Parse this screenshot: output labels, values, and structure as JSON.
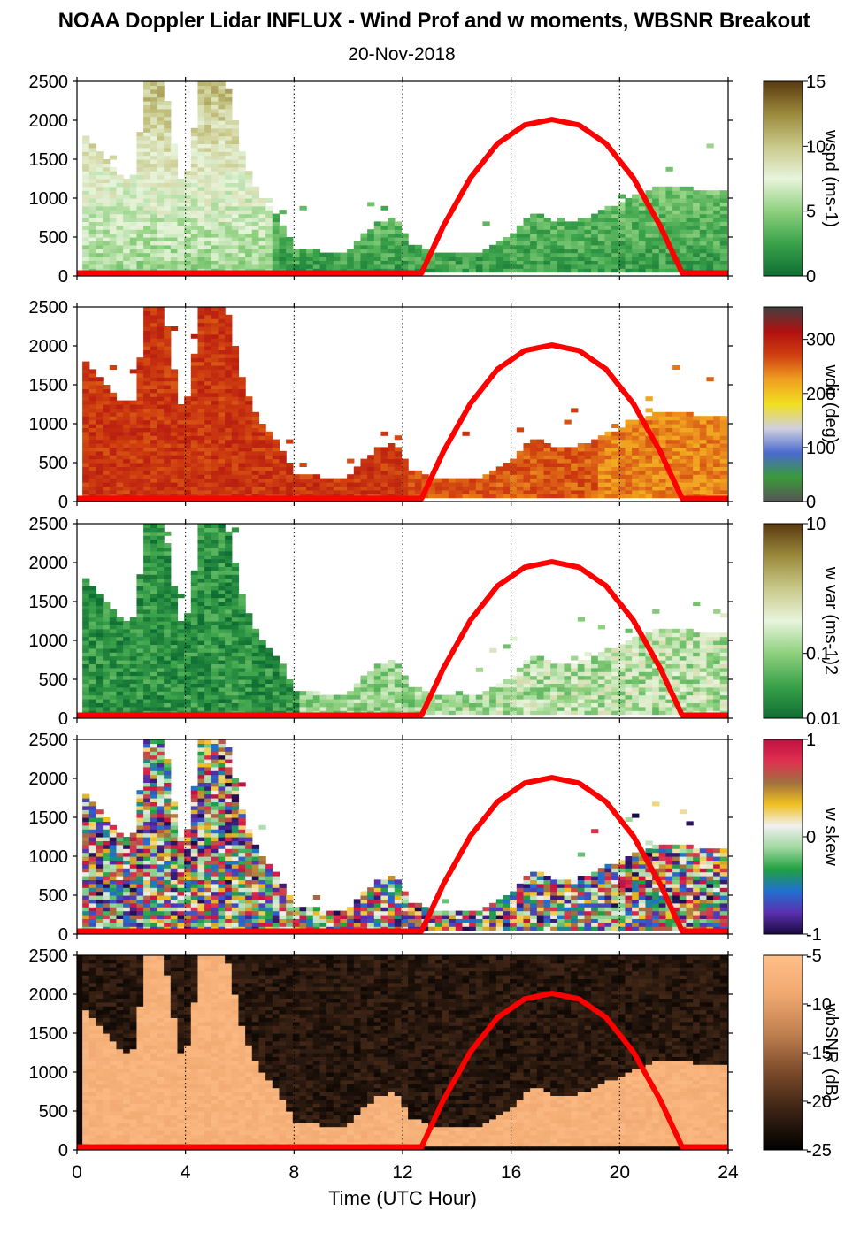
{
  "title": "NOAA Doppler Lidar INFLUX - Wind Prof and w moments, WBSNR Breakout",
  "subtitle": "20-Nov-2018",
  "xaxis": {
    "label": "Time (UTC Hour)",
    "range": [
      0,
      24
    ],
    "ticks": [
      "0",
      "4",
      "8",
      "12",
      "16",
      "20",
      "24"
    ],
    "grid_lines": [
      4,
      8,
      12,
      16,
      20,
      24
    ]
  },
  "yaxis": {
    "range": [
      0,
      2500
    ],
    "ticks": [
      "0",
      "500",
      "1000",
      "1500",
      "2000",
      "2500"
    ]
  },
  "overlay_color": "#ff0000",
  "chart_data": [
    {
      "type": "heatmap",
      "variable": "wspd",
      "colorbar": {
        "label": "wspd (ms-1)",
        "range": [
          0,
          15
        ],
        "ticks": [
          "0",
          "5",
          "10",
          "15"
        ],
        "colors": [
          "#0f6e33",
          "#3aa24a",
          "#8ed07e",
          "#e8f4dc",
          "#c9c98a",
          "#9b8a3c",
          "#5a3a10"
        ]
      },
      "overlay": {
        "name": "solar elevation curve",
        "x": [
          0,
          12.7,
          13.5,
          14.5,
          15.5,
          16.5,
          17.5,
          18.5,
          19.5,
          20.5,
          21.5,
          22.3,
          24
        ],
        "y": [
          40,
          40,
          640,
          1260,
          1700,
          1940,
          2010,
          1940,
          1700,
          1260,
          640,
          40,
          40
        ]
      }
    },
    {
      "type": "heatmap",
      "variable": "wdir",
      "colorbar": {
        "label": "wdir (deg)",
        "range": [
          0,
          360
        ],
        "ticks": [
          "0",
          "100",
          "200",
          "300"
        ],
        "colors": [
          "#555555",
          "#3a9a3a",
          "#4a6ad0",
          "#d0d0e0",
          "#f0e020",
          "#f0a020",
          "#d04010",
          "#b01010",
          "#404040"
        ]
      },
      "overlay": {
        "name": "solar elevation curve",
        "x": [
          0,
          12.7,
          13.5,
          14.5,
          15.5,
          16.5,
          17.5,
          18.5,
          19.5,
          20.5,
          21.5,
          22.3,
          24
        ],
        "y": [
          40,
          40,
          640,
          1260,
          1700,
          1940,
          2010,
          1940,
          1700,
          1260,
          640,
          40,
          40
        ]
      }
    },
    {
      "type": "heatmap",
      "variable": "w var",
      "colorbar": {
        "label": "w var (ms-1)2",
        "range": [
          0.01,
          10
        ],
        "scale": "log",
        "ticks": [
          "0.01",
          "0.1",
          "10"
        ],
        "colors": [
          "#0f6e33",
          "#3aa24a",
          "#8ed07e",
          "#e8f4dc",
          "#c9c98a",
          "#9b8a3c",
          "#5a3a10"
        ]
      },
      "overlay": {
        "name": "solar elevation curve",
        "x": [
          0,
          12.7,
          13.5,
          14.5,
          15.5,
          16.5,
          17.5,
          18.5,
          19.5,
          20.5,
          21.5,
          22.3,
          24
        ],
        "y": [
          40,
          40,
          640,
          1260,
          1700,
          1940,
          2010,
          1940,
          1700,
          1260,
          640,
          40,
          40
        ]
      }
    },
    {
      "type": "heatmap",
      "variable": "w skew",
      "colorbar": {
        "label": "w skew",
        "range": [
          -1,
          1
        ],
        "ticks": [
          "-1",
          "0",
          "1"
        ],
        "colors": [
          "#1a0a40",
          "#5a30b0",
          "#2070d0",
          "#20a040",
          "#a0d8a0",
          "#f0f0f0",
          "#f0c020",
          "#a07040",
          "#e03050",
          "#c01040"
        ]
      },
      "overlay": {
        "name": "solar elevation curve",
        "x": [
          0,
          12.7,
          13.5,
          14.5,
          15.5,
          16.5,
          17.5,
          18.5,
          19.5,
          20.5,
          21.5,
          22.3,
          24
        ],
        "y": [
          40,
          40,
          640,
          1260,
          1700,
          1940,
          2010,
          1940,
          1700,
          1260,
          640,
          40,
          40
        ]
      }
    },
    {
      "type": "heatmap",
      "variable": "wbSNR",
      "colorbar": {
        "label": "wbSNR (dB)",
        "range": [
          -25,
          -5
        ],
        "ticks": [
          "-25",
          "-20",
          "-15",
          "-10",
          "-5"
        ],
        "colors": [
          "#000000",
          "#3a2214",
          "#7a4a2a",
          "#c08050",
          "#f0a870",
          "#ffc088"
        ]
      },
      "overlay": {
        "name": "solar elevation curve",
        "x": [
          0,
          12.7,
          13.5,
          14.5,
          15.5,
          16.5,
          17.5,
          18.5,
          19.5,
          20.5,
          21.5,
          22.3,
          24
        ],
        "y": [
          40,
          40,
          640,
          1260,
          1700,
          1940,
          2010,
          1940,
          1700,
          1260,
          640,
          40,
          40
        ]
      }
    }
  ]
}
